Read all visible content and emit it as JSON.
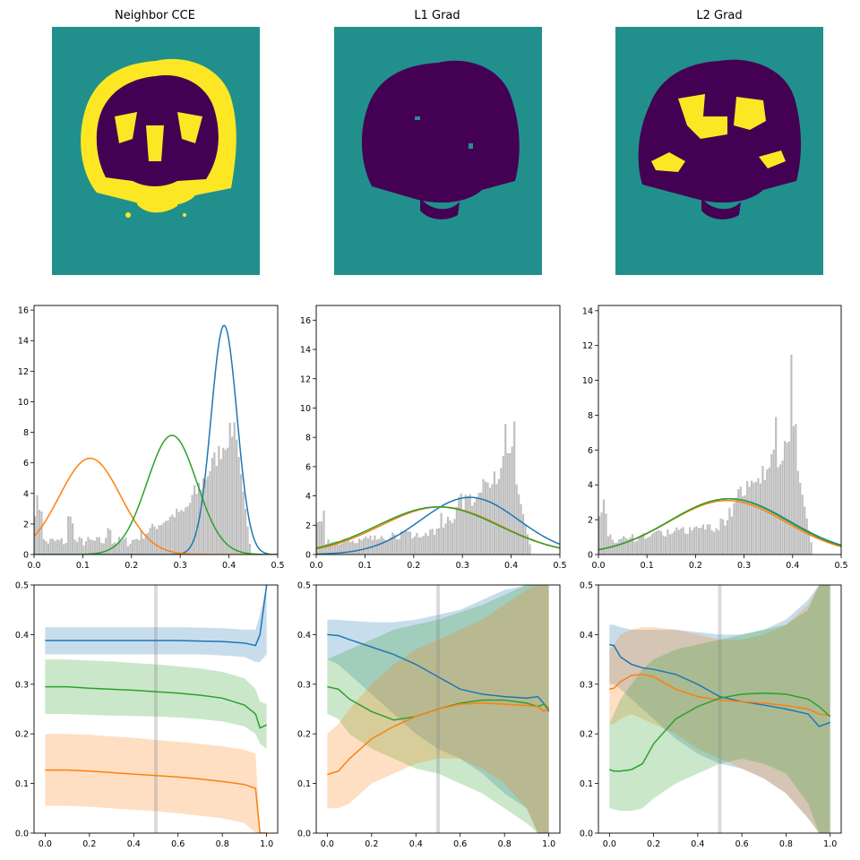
{
  "columns": [
    {
      "title": "Neighbor CCE"
    },
    {
      "title": "L1 Grad"
    },
    {
      "title": "L2 Grad"
    }
  ],
  "colors": {
    "blue": "#1f77b4",
    "orange": "#ff7f0e",
    "green": "#2ca02c",
    "hist": "#bfbfbf",
    "seg_background": "#21908d",
    "seg_dark": "#440154",
    "seg_bright": "#fde725",
    "vline": "#d9d9d9"
  },
  "chart_data": [
    {
      "type": "histogram",
      "panel": "Neighbor CCE",
      "xlim": [
        0,
        0.5
      ],
      "ylim": [
        0,
        16.3
      ],
      "xticks": [
        "0.0",
        "0.1",
        "0.2",
        "0.3",
        "0.4",
        "0.5"
      ],
      "yticks": [
        "0",
        "2",
        "4",
        "6",
        "8",
        "10",
        "12",
        "14",
        "16"
      ],
      "gaussians": [
        {
          "color": "blue",
          "mean": 0.39,
          "std": 0.0265,
          "peak": 15.0
        },
        {
          "color": "orange",
          "mean": 0.115,
          "std": 0.063,
          "peak": 6.3
        },
        {
          "color": "green",
          "mean": 0.283,
          "std": 0.051,
          "peak": 7.8
        }
      ]
    },
    {
      "type": "histogram",
      "panel": "L1 Grad",
      "xlim": [
        0,
        0.5
      ],
      "ylim": [
        0,
        17
      ],
      "xticks": [
        "0.0",
        "0.1",
        "0.2",
        "0.3",
        "0.4",
        "0.5"
      ],
      "yticks": [
        "0",
        "2",
        "4",
        "6",
        "8",
        "10",
        "12",
        "14",
        "16"
      ],
      "gaussians": [
        {
          "color": "blue",
          "mean": 0.315,
          "std": 0.1,
          "peak": 3.9
        },
        {
          "color": "orange",
          "mean": 0.255,
          "std": 0.123,
          "peak": 3.25
        },
        {
          "color": "green",
          "mean": 0.25,
          "std": 0.125,
          "peak": 3.25
        }
      ]
    },
    {
      "type": "histogram",
      "panel": "L2 Grad",
      "xlim": [
        0,
        0.5
      ],
      "ylim": [
        0,
        14.3
      ],
      "xticks": [
        "0.0",
        "0.1",
        "0.2",
        "0.3",
        "0.4",
        "0.5"
      ],
      "yticks": [
        "0",
        "2",
        "4",
        "6",
        "8",
        "10",
        "12",
        "14"
      ],
      "gaussians": [
        {
          "color": "blue",
          "mean": 0.27,
          "std": 0.122,
          "peak": 3.2
        },
        {
          "color": "orange",
          "mean": 0.265,
          "std": 0.12,
          "peak": 3.1
        },
        {
          "color": "green",
          "mean": 0.268,
          "std": 0.121,
          "peak": 3.2
        }
      ]
    },
    {
      "type": "line-band",
      "panel": "Neighbor CCE",
      "xlim": [
        -0.05,
        1.05
      ],
      "ylim": [
        0,
        0.5
      ],
      "xticks": [
        "0.0",
        "0.2",
        "0.4",
        "0.6",
        "0.8",
        "1.0"
      ],
      "yticks": [
        "0.0",
        "0.1",
        "0.2",
        "0.3",
        "0.4",
        "0.5"
      ],
      "vline": 0.5,
      "x": [
        0,
        0.1,
        0.2,
        0.3,
        0.4,
        0.5,
        0.6,
        0.7,
        0.8,
        0.9,
        0.95,
        0.97,
        1.0
      ],
      "series": [
        {
          "color": "green",
          "mean": [
            0.295,
            0.295,
            0.292,
            0.29,
            0.288,
            0.285,
            0.282,
            0.278,
            0.272,
            0.258,
            0.24,
            0.212,
            0.218
          ],
          "lower": [
            0.24,
            0.24,
            0.238,
            0.237,
            0.236,
            0.235,
            0.233,
            0.23,
            0.225,
            0.215,
            0.2,
            0.18,
            0.17
          ],
          "upper": [
            0.35,
            0.35,
            0.348,
            0.346,
            0.343,
            0.34,
            0.336,
            0.332,
            0.325,
            0.312,
            0.29,
            0.265,
            0.26
          ]
        },
        {
          "color": "orange",
          "mean": [
            0.127,
            0.127,
            0.125,
            0.122,
            0.119,
            0.116,
            0.113,
            0.109,
            0.104,
            0.098,
            0.09,
            0.0,
            0.0
          ],
          "lower": [
            0.055,
            0.055,
            0.053,
            0.05,
            0.047,
            0.044,
            0.04,
            0.035,
            0.03,
            0.02,
            0.0,
            0.0,
            0.0
          ],
          "upper": [
            0.2,
            0.2,
            0.198,
            0.195,
            0.192,
            0.188,
            0.184,
            0.18,
            0.175,
            0.168,
            0.16,
            0.0,
            0.0
          ]
        },
        {
          "color": "blue",
          "mean": [
            0.388,
            0.388,
            0.388,
            0.388,
            0.388,
            0.388,
            0.388,
            0.387,
            0.386,
            0.383,
            0.378,
            0.4,
            0.5
          ],
          "lower": [
            0.36,
            0.36,
            0.36,
            0.36,
            0.36,
            0.36,
            0.36,
            0.36,
            0.358,
            0.355,
            0.345,
            0.345,
            0.36
          ],
          "upper": [
            0.415,
            0.415,
            0.415,
            0.415,
            0.415,
            0.415,
            0.415,
            0.414,
            0.413,
            0.41,
            0.41,
            0.44,
            0.5
          ]
        }
      ]
    },
    {
      "type": "line-band",
      "panel": "L1 Grad",
      "xlim": [
        -0.05,
        1.05
      ],
      "ylim": [
        0,
        0.5
      ],
      "xticks": [
        "0.0",
        "0.2",
        "0.4",
        "0.6",
        "0.8",
        "1.0"
      ],
      "yticks": [
        "0.0",
        "0.1",
        "0.2",
        "0.3",
        "0.4",
        "0.5"
      ],
      "vline": 0.5,
      "x": [
        0,
        0.05,
        0.1,
        0.2,
        0.3,
        0.4,
        0.5,
        0.6,
        0.7,
        0.8,
        0.9,
        0.95,
        0.98,
        1.0
      ],
      "series": [
        {
          "color": "blue",
          "mean": [
            0.4,
            0.398,
            0.39,
            0.375,
            0.36,
            0.34,
            0.315,
            0.29,
            0.28,
            0.275,
            0.272,
            0.275,
            0.26,
            0.245
          ],
          "lower": [
            0.35,
            0.34,
            0.32,
            0.28,
            0.24,
            0.2,
            0.17,
            0.15,
            0.12,
            0.08,
            0.05,
            0.0,
            0.0,
            0.0
          ],
          "upper": [
            0.43,
            0.43,
            0.428,
            0.425,
            0.425,
            0.43,
            0.44,
            0.45,
            0.47,
            0.49,
            0.5,
            0.5,
            0.5,
            0.5
          ]
        },
        {
          "color": "green",
          "mean": [
            0.295,
            0.29,
            0.27,
            0.245,
            0.228,
            0.235,
            0.25,
            0.262,
            0.268,
            0.268,
            0.262,
            0.255,
            0.26,
            0.25
          ],
          "lower": [
            0.24,
            0.23,
            0.2,
            0.17,
            0.15,
            0.13,
            0.12,
            0.1,
            0.08,
            0.05,
            0.02,
            0.0,
            0.0,
            0.0
          ],
          "upper": [
            0.35,
            0.36,
            0.37,
            0.39,
            0.41,
            0.42,
            0.43,
            0.445,
            0.46,
            0.48,
            0.5,
            0.5,
            0.5,
            0.5
          ]
        },
        {
          "color": "orange",
          "mean": [
            0.118,
            0.125,
            0.15,
            0.19,
            0.215,
            0.235,
            0.25,
            0.26,
            0.262,
            0.26,
            0.257,
            0.255,
            0.245,
            0.255
          ],
          "lower": [
            0.05,
            0.05,
            0.06,
            0.1,
            0.12,
            0.14,
            0.15,
            0.15,
            0.13,
            0.1,
            0.05,
            0.0,
            0.0,
            0.0
          ],
          "upper": [
            0.2,
            0.22,
            0.25,
            0.3,
            0.34,
            0.37,
            0.39,
            0.41,
            0.43,
            0.46,
            0.49,
            0.5,
            0.5,
            0.5
          ]
        }
      ]
    },
    {
      "type": "line-band",
      "panel": "L2 Grad",
      "xlim": [
        -0.05,
        1.05
      ],
      "ylim": [
        0,
        0.5
      ],
      "xticks": [
        "0.0",
        "0.2",
        "0.4",
        "0.6",
        "0.8",
        "1.0"
      ],
      "yticks": [
        "0.0",
        "0.1",
        "0.2",
        "0.3",
        "0.4",
        "0.5"
      ],
      "vline": 0.5,
      "x": [
        0,
        0.02,
        0.05,
        0.1,
        0.15,
        0.2,
        0.3,
        0.4,
        0.5,
        0.6,
        0.7,
        0.8,
        0.9,
        0.95,
        1.0
      ],
      "series": [
        {
          "color": "blue",
          "mean": [
            0.38,
            0.378,
            0.355,
            0.34,
            0.333,
            0.33,
            0.32,
            0.3,
            0.275,
            0.265,
            0.258,
            0.25,
            0.24,
            0.215,
            0.223
          ],
          "lower": [
            0.3,
            0.3,
            0.29,
            0.27,
            0.25,
            0.23,
            0.19,
            0.16,
            0.14,
            0.13,
            0.11,
            0.08,
            0.03,
            0.0,
            0.0
          ],
          "upper": [
            0.42,
            0.42,
            0.415,
            0.41,
            0.41,
            0.41,
            0.41,
            0.405,
            0.4,
            0.4,
            0.41,
            0.43,
            0.47,
            0.5,
            0.5
          ]
        },
        {
          "color": "orange",
          "mean": [
            0.29,
            0.292,
            0.305,
            0.318,
            0.32,
            0.315,
            0.29,
            0.275,
            0.268,
            0.265,
            0.262,
            0.257,
            0.25,
            0.24,
            0.237
          ],
          "lower": [
            0.22,
            0.22,
            0.23,
            0.24,
            0.23,
            0.22,
            0.2,
            0.17,
            0.15,
            0.13,
            0.11,
            0.08,
            0.03,
            0.0,
            0.0
          ],
          "upper": [
            0.37,
            0.38,
            0.4,
            0.41,
            0.415,
            0.415,
            0.41,
            0.4,
            0.39,
            0.39,
            0.4,
            0.42,
            0.46,
            0.5,
            0.5
          ]
        },
        {
          "color": "green",
          "mean": [
            0.128,
            0.125,
            0.125,
            0.128,
            0.14,
            0.18,
            0.23,
            0.255,
            0.272,
            0.28,
            0.282,
            0.28,
            0.27,
            0.255,
            0.235
          ],
          "lower": [
            0.05,
            0.048,
            0.045,
            0.045,
            0.05,
            0.07,
            0.1,
            0.12,
            0.14,
            0.15,
            0.14,
            0.12,
            0.06,
            0.0,
            0.0
          ],
          "upper": [
            0.22,
            0.24,
            0.27,
            0.3,
            0.33,
            0.35,
            0.37,
            0.38,
            0.39,
            0.4,
            0.41,
            0.42,
            0.45,
            0.5,
            0.5
          ]
        }
      ]
    }
  ]
}
